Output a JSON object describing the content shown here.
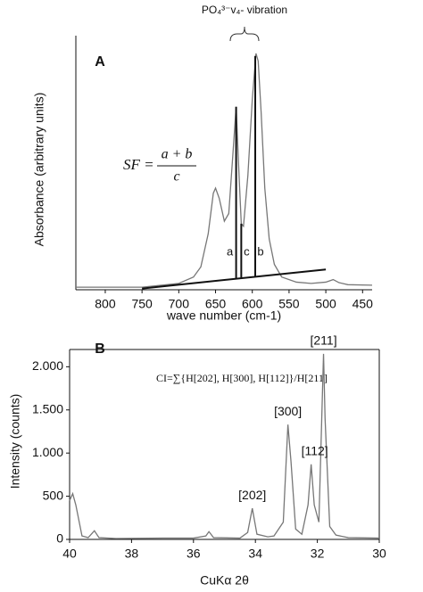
{
  "chart_data": [
    {
      "type": "line",
      "title": "A",
      "ylabel": "Absorbance (arbitrary units)",
      "xlabel": "wave number (cm-1)",
      "xlim": [
        840,
        437
      ],
      "xticks": [
        800,
        750,
        700,
        650,
        600,
        550,
        500,
        450
      ],
      "ylim": [
        0,
        1
      ],
      "series": [
        {
          "color": "#777777",
          "x": [
            840,
            750,
            700,
            680,
            670,
            660,
            653,
            650,
            645,
            638,
            632,
            626,
            622,
            618,
            615,
            612,
            606,
            600,
            595,
            592,
            588,
            583,
            577,
            570,
            560,
            540,
            520,
            500,
            490,
            482,
            470,
            437
          ],
          "values": [
            0.01,
            0.01,
            0.025,
            0.05,
            0.09,
            0.22,
            0.38,
            0.4,
            0.36,
            0.27,
            0.3,
            0.55,
            0.72,
            0.45,
            0.26,
            0.25,
            0.45,
            0.75,
            0.93,
            0.9,
            0.7,
            0.4,
            0.2,
            0.1,
            0.05,
            0.03,
            0.025,
            0.03,
            0.04,
            0.028,
            0.02,
            0.018
          ]
        }
      ],
      "baseline": {
        "x": [
          750,
          500
        ],
        "values": [
          0.005,
          0.08
        ]
      },
      "markers": [
        {
          "label": "a",
          "x": 622,
          "y": 0.72
        },
        {
          "label": "c",
          "x": 615,
          "y": 0.26
        },
        {
          "label": "b",
          "x": 596,
          "y": 0.92
        }
      ],
      "annotation": "PO₄³⁻v₄- vibration",
      "formula": {
        "lhs": "SF =",
        "numerator": "a + b",
        "denominator": "c"
      }
    },
    {
      "type": "line",
      "title": "B",
      "ylabel": "Intensity (counts)",
      "xlabel": "CuKα 2θ",
      "xlim": [
        40,
        30
      ],
      "xticks": [
        40,
        38,
        36,
        34,
        32,
        30
      ],
      "ylim": [
        0,
        2200
      ],
      "yticks": [
        0,
        500,
        {
          "value": 1000,
          "label": "1.000"
        },
        {
          "value": 1500,
          "label": "1.500"
        },
        {
          "value": 2000,
          "label": "2.000"
        }
      ],
      "series": [
        {
          "color": "#777777",
          "x": [
            40.0,
            39.9,
            39.8,
            39.6,
            39.4,
            39.2,
            39.05,
            38.5,
            37,
            36,
            35.6,
            35.5,
            35.35,
            34.5,
            34.25,
            34.1,
            33.95,
            33.6,
            33.4,
            33.1,
            32.95,
            32.85,
            32.7,
            32.5,
            32.3,
            32.2,
            32.1,
            31.95,
            31.85,
            31.8,
            31.75,
            31.6,
            31.4,
            31.0,
            30.0
          ],
          "values": [
            450,
            530,
            400,
            40,
            20,
            100,
            20,
            10,
            15,
            15,
            40,
            90,
            20,
            15,
            80,
            360,
            60,
            30,
            40,
            200,
            1330,
            900,
            120,
            60,
            400,
            870,
            400,
            200,
            1500,
            2150,
            1400,
            150,
            50,
            20,
            15
          ]
        }
      ],
      "peak_labels": [
        {
          "label": "[202]",
          "x": 34.1,
          "y": 360
        },
        {
          "label": "[300]",
          "x": 32.95,
          "y": 1330
        },
        {
          "label": "[112]",
          "x": 32.2,
          "y": 870
        },
        {
          "label": "[211]",
          "x": 31.8,
          "y": 2150
        }
      ],
      "annotation": "CI=∑{H[202], H[300], H[112]}/H[211]"
    }
  ]
}
